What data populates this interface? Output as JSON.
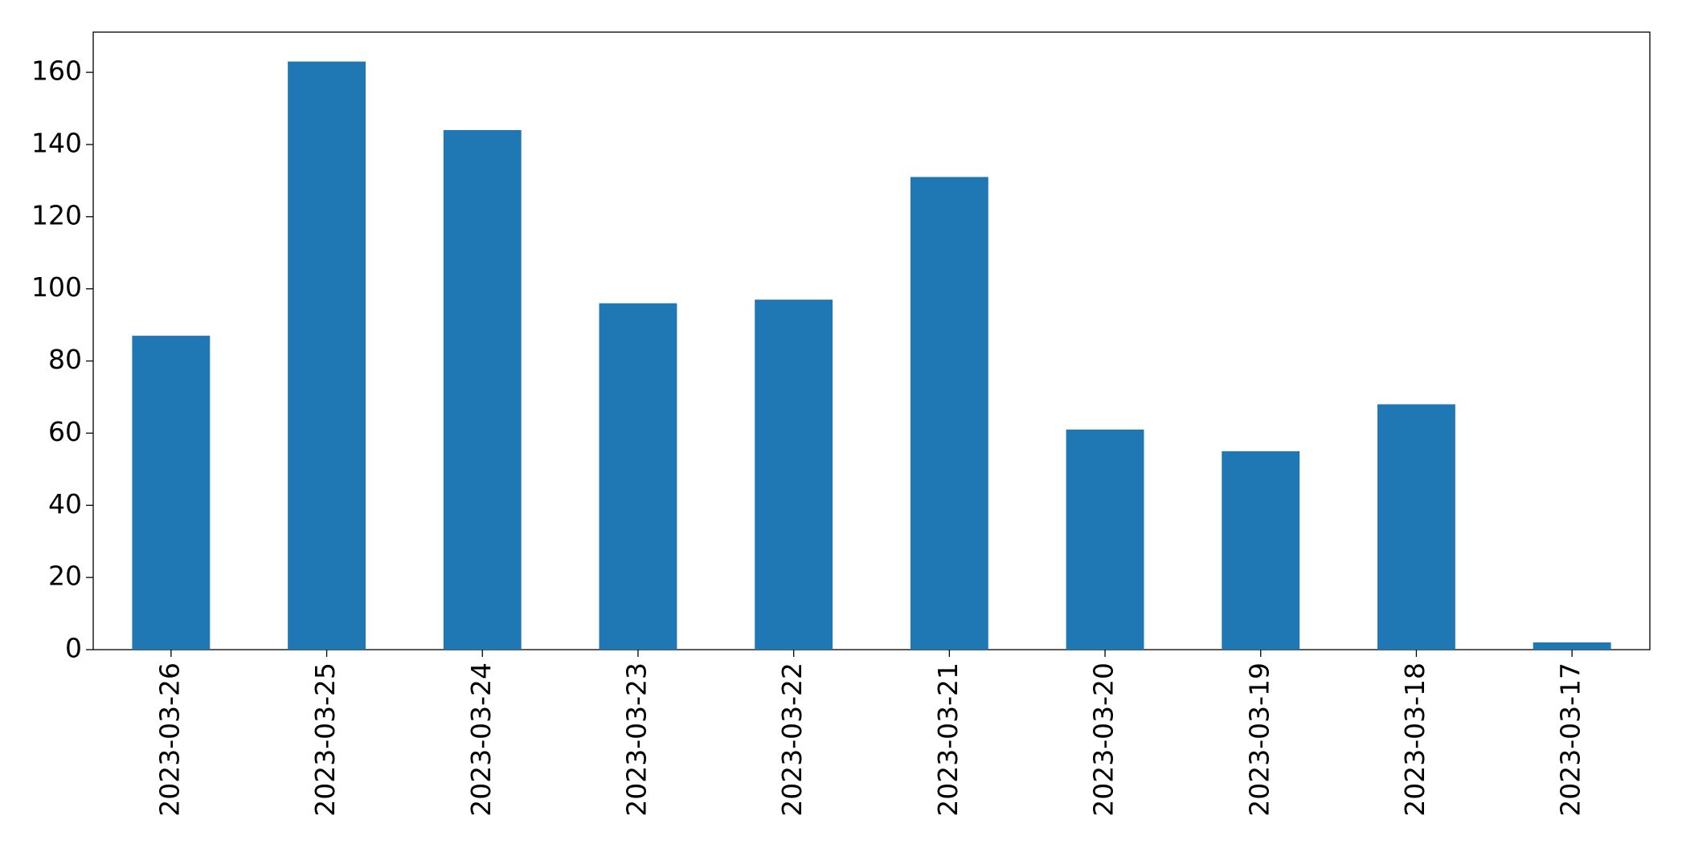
{
  "chart_data": {
    "type": "bar",
    "categories": [
      "2023-03-26",
      "2023-03-25",
      "2023-03-24",
      "2023-03-23",
      "2023-03-22",
      "2023-03-21",
      "2023-03-20",
      "2023-03-19",
      "2023-03-18",
      "2023-03-17"
    ],
    "values": [
      87,
      163,
      144,
      96,
      97,
      131,
      61,
      55,
      68,
      2
    ],
    "color": "#1f77b4",
    "ylim": [
      0,
      171.15
    ],
    "yticks": [
      0,
      20,
      40,
      60,
      80,
      100,
      120,
      140,
      160
    ],
    "grid": false
  }
}
